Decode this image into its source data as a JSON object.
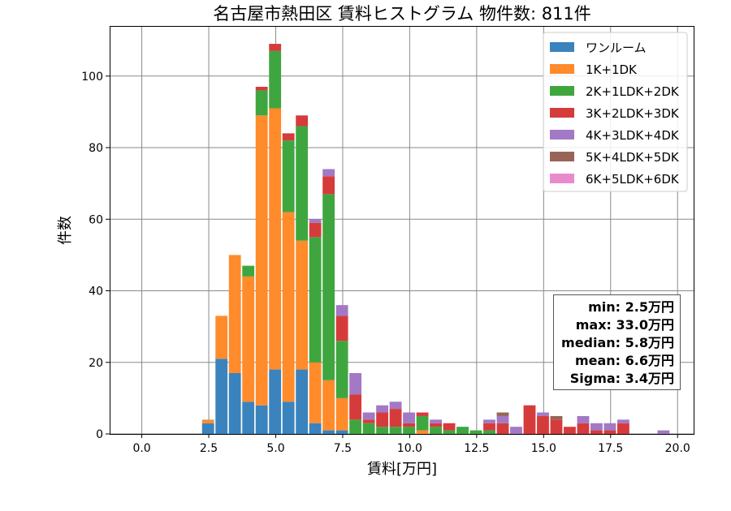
{
  "chart_data": {
    "type": "bar",
    "stacked": true,
    "title": "名古屋市熱田区 賃料ヒストグラム  物件数: 811件",
    "xlabel": "賃料[万円]",
    "ylabel": "件数",
    "xlim": [
      -1.2,
      20.6
    ],
    "ylim": [
      0,
      114
    ],
    "xticks": [
      0.0,
      2.5,
      5.0,
      7.5,
      10.0,
      12.5,
      15.0,
      17.5,
      20.0
    ],
    "xtick_labels": [
      "0.0",
      "2.5",
      "5.0",
      "7.5",
      "10.0",
      "12.5",
      "15.0",
      "17.5",
      "20.0"
    ],
    "yticks": [
      0,
      20,
      40,
      60,
      80,
      100
    ],
    "ytick_labels": [
      "0",
      "20",
      "40",
      "60",
      "80",
      "100"
    ],
    "grid": true,
    "legend_position": "top-right",
    "bin_width": 0.5,
    "bin_starts": [
      2.5,
      3.0,
      3.5,
      4.0,
      4.5,
      5.0,
      5.5,
      6.0,
      6.5,
      7.0,
      7.5,
      8.0,
      8.5,
      9.0,
      9.5,
      10.0,
      10.5,
      11.0,
      11.5,
      12.0,
      12.5,
      13.0,
      13.5,
      14.0,
      14.5,
      15.0,
      15.5,
      16.0,
      16.5,
      17.0,
      17.5,
      18.0,
      18.5,
      19.0,
      19.5
    ],
    "series": [
      {
        "name": "ワンルーム",
        "color": "#3a83bd",
        "values": [
          3,
          21,
          17,
          9,
          8,
          18,
          9,
          18,
          3,
          1,
          1,
          0,
          0,
          0,
          0,
          0,
          0,
          0,
          0,
          0,
          0,
          0,
          0,
          0,
          0,
          0,
          0,
          0,
          0,
          0,
          0,
          0,
          0,
          0,
          0
        ]
      },
      {
        "name": "1K+1DK",
        "color": "#ff8b2b",
        "values": [
          1,
          12,
          33,
          35,
          81,
          73,
          53,
          36,
          17,
          14,
          9,
          0,
          0,
          0,
          0,
          0,
          1,
          0,
          0,
          0,
          0,
          0,
          0,
          0,
          0,
          0,
          0,
          0,
          0,
          0,
          0,
          0,
          0,
          0,
          0
        ]
      },
      {
        "name": "2K+1LDK+2DK",
        "color": "#3fa63f",
        "values": [
          0,
          0,
          0,
          3,
          7,
          16,
          20,
          32,
          35,
          52,
          16,
          4,
          3,
          2,
          2,
          2,
          4,
          2,
          1,
          2,
          1,
          1,
          0,
          0,
          0,
          0,
          0,
          0,
          0,
          0,
          0,
          0,
          0,
          0,
          0
        ]
      },
      {
        "name": "3K+2LDK+3DK",
        "color": "#d63b3b",
        "values": [
          0,
          0,
          0,
          0,
          1,
          2,
          2,
          3,
          4,
          5,
          7,
          7,
          1,
          4,
          5,
          1,
          1,
          1,
          2,
          0,
          0,
          2,
          3,
          0,
          8,
          5,
          4,
          2,
          3,
          1,
          1,
          3,
          0,
          0,
          0
        ]
      },
      {
        "name": "4K+3LDK+4DK",
        "color": "#a378c5",
        "values": [
          0,
          0,
          0,
          0,
          0,
          0,
          0,
          0,
          1,
          2,
          3,
          6,
          2,
          2,
          2,
          3,
          0,
          1,
          0,
          0,
          0,
          1,
          2,
          2,
          0,
          1,
          0,
          0,
          2,
          2,
          2,
          1,
          0,
          0,
          1
        ]
      },
      {
        "name": "5K+4LDK+5DK",
        "color": "#986459",
        "values": [
          0,
          0,
          0,
          0,
          0,
          0,
          0,
          0,
          0,
          0,
          0,
          0,
          0,
          0,
          0,
          0,
          0,
          0,
          0,
          0,
          0,
          0,
          1,
          0,
          0,
          0,
          1,
          0,
          0,
          0,
          0,
          0,
          0,
          0,
          0
        ]
      },
      {
        "name": "6K+5LDK+6DK",
        "color": "#e98bcb",
        "values": [
          0,
          0,
          0,
          0,
          0,
          0,
          0,
          0,
          0,
          0,
          0,
          0,
          0,
          0,
          0,
          0,
          0,
          0,
          0,
          0,
          0,
          0,
          0,
          0,
          0,
          0,
          0,
          0,
          0,
          0,
          0,
          0,
          0,
          0,
          0
        ]
      }
    ],
    "stats": {
      "min": "min: 2.5万円",
      "max": "max: 33.0万円",
      "median": "median: 5.8万円",
      "mean": "mean: 6.6万円",
      "sigma": "Sigma: 3.4万円"
    }
  }
}
